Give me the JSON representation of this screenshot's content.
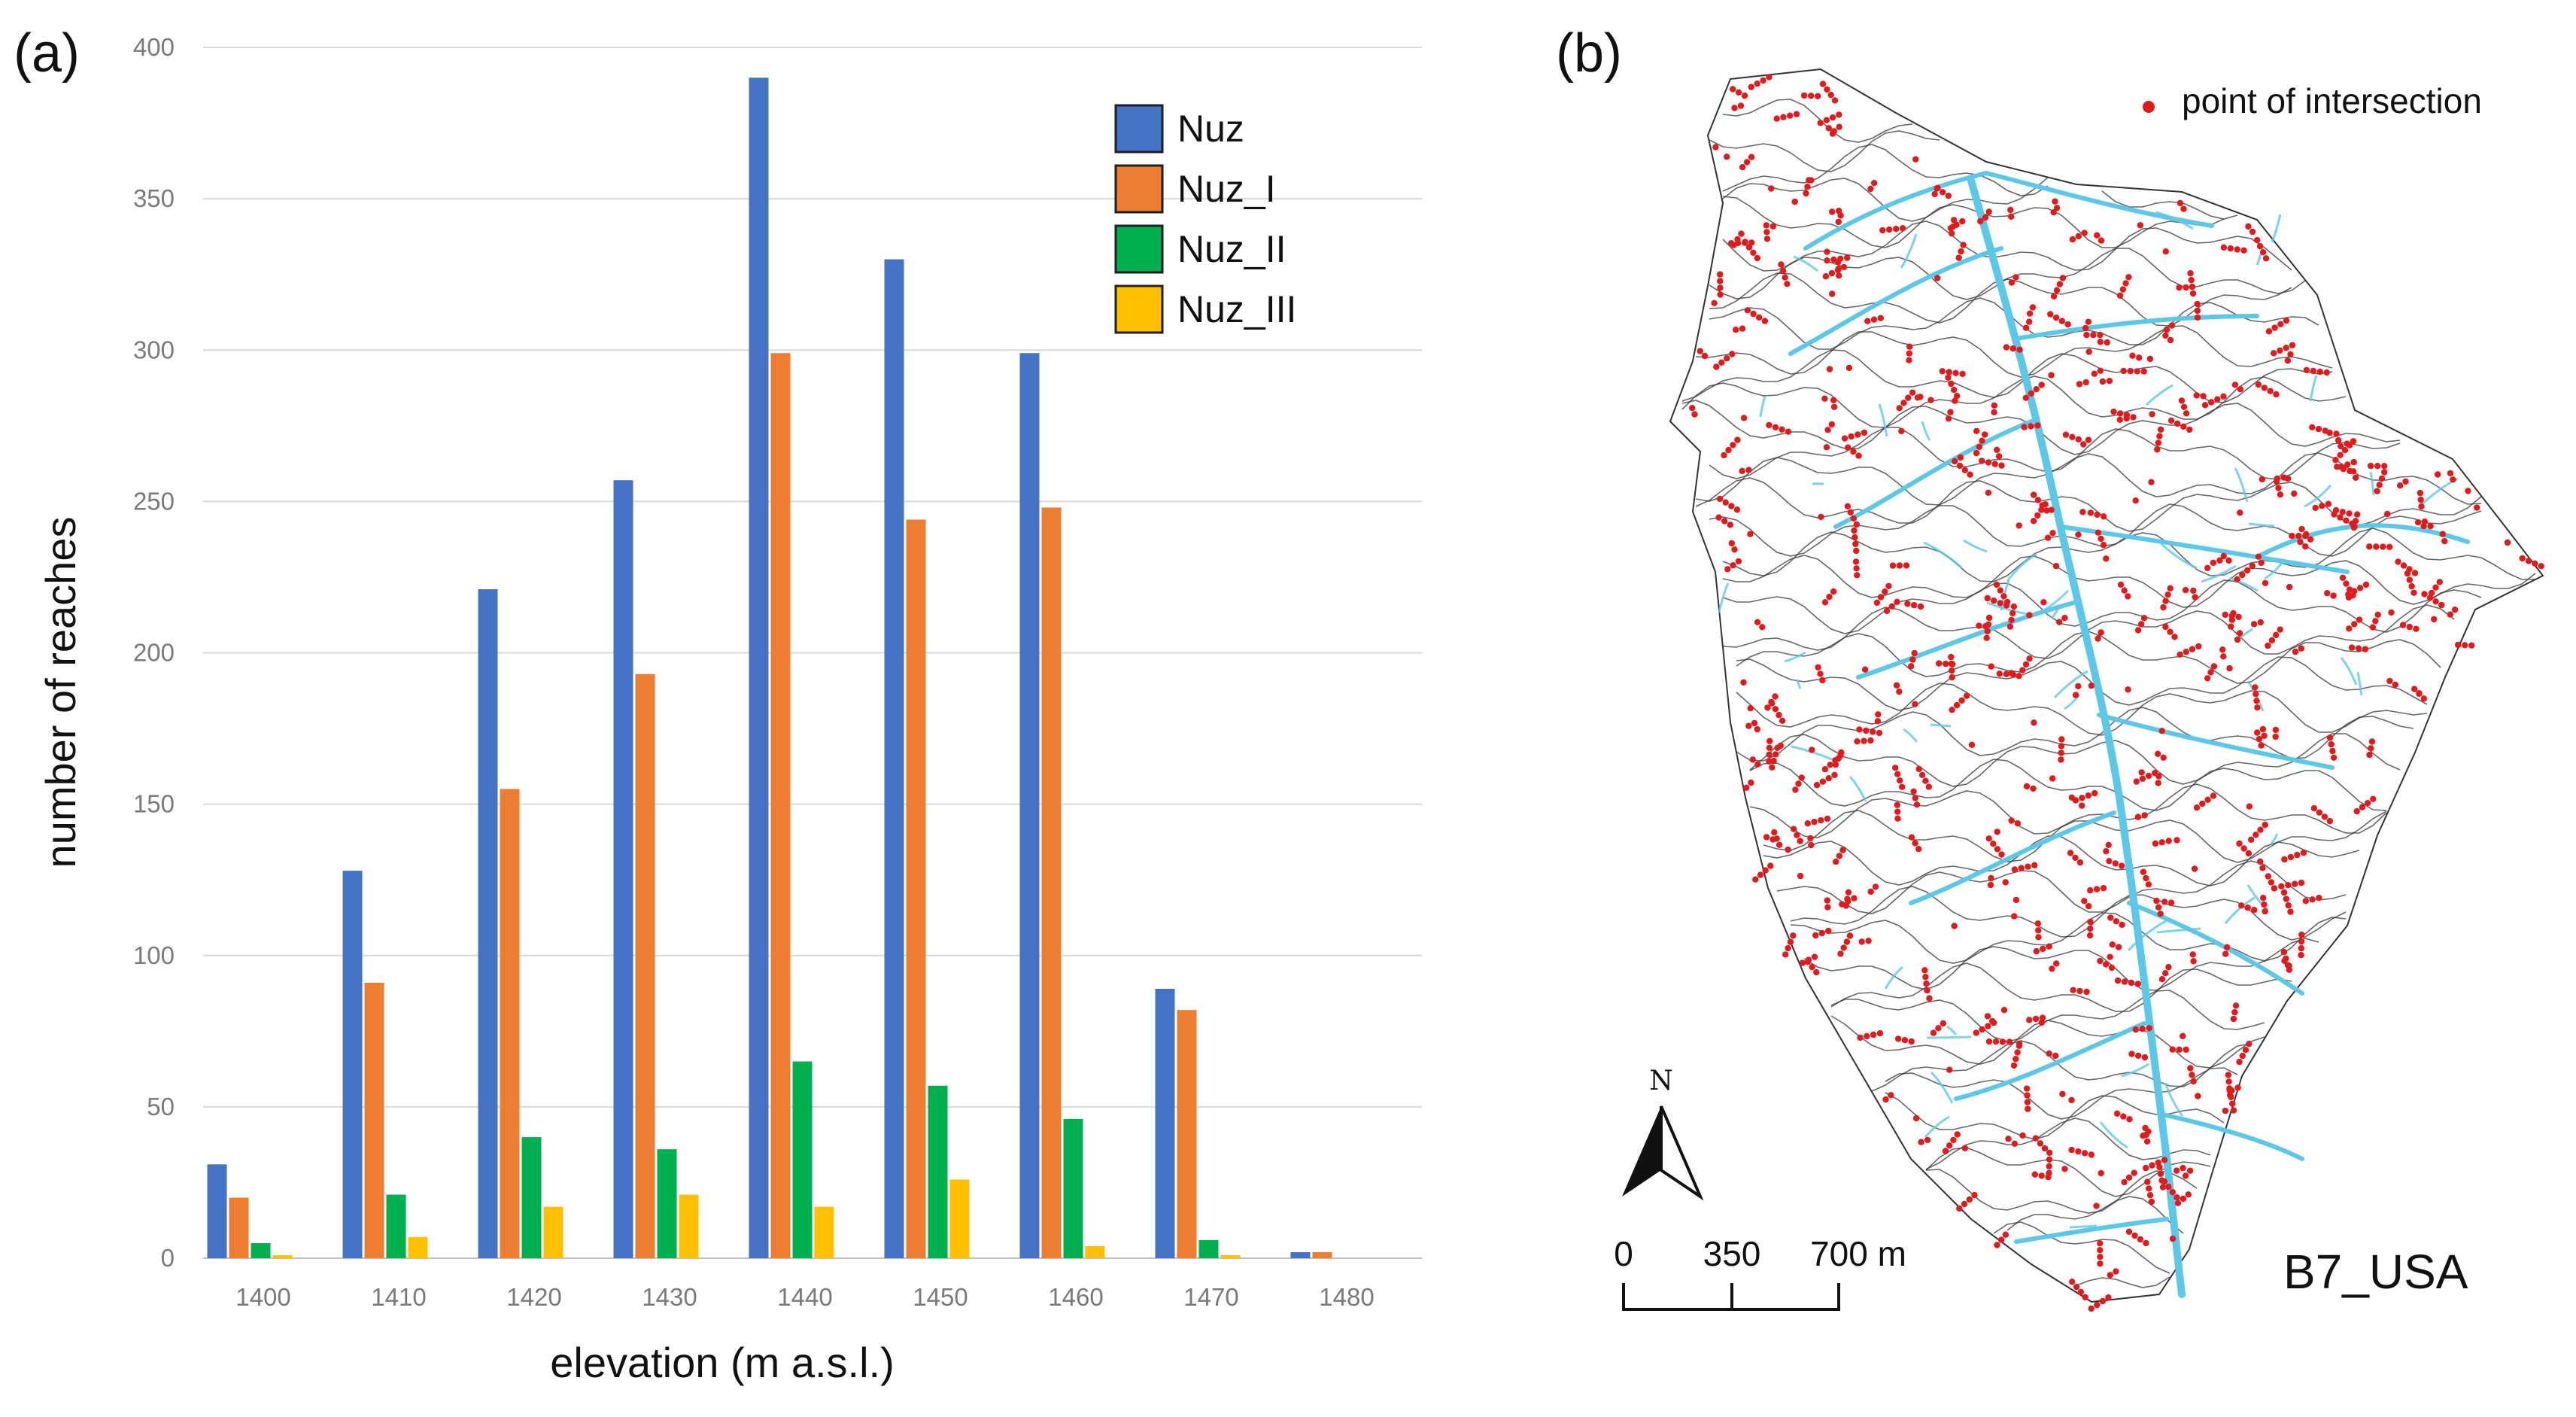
{
  "panel_a": {
    "label": "(a)"
  },
  "panel_b": {
    "label": "(b)"
  },
  "chart_data": {
    "type": "bar",
    "title": "",
    "xlabel": "elevation (m a.s.l.)",
    "ylabel": "number of reaches",
    "ylim": [
      0,
      400
    ],
    "yticks": [
      0,
      50,
      100,
      150,
      200,
      250,
      300,
      350,
      400
    ],
    "categories": [
      "1400",
      "1410",
      "1420",
      "1430",
      "1440",
      "1450",
      "1460",
      "1470",
      "1480"
    ],
    "legend_position": "top-right",
    "grid": true,
    "series": [
      {
        "name": "Nuz",
        "color": "#4472C4",
        "values": [
          31,
          128,
          221,
          257,
          390,
          330,
          299,
          89,
          2
        ]
      },
      {
        "name": "Nuz_I",
        "color": "#ED7D31",
        "values": [
          20,
          91,
          155,
          193,
          299,
          244,
          248,
          82,
          2
        ]
      },
      {
        "name": "Nuz_II",
        "color": "#00B050",
        "values": [
          5,
          21,
          40,
          36,
          65,
          57,
          46,
          6,
          0
        ]
      },
      {
        "name": "Nuz_III",
        "color": "#FFC000",
        "values": [
          1,
          7,
          17,
          21,
          17,
          26,
          4,
          1,
          0
        ]
      }
    ]
  },
  "map": {
    "legend_label": "point of intersection",
    "point_color": "#E31A1C",
    "stream_color": "#5BC8E8",
    "contour_color": "#333333",
    "north_label": "N",
    "scale_labels": [
      "0",
      "350",
      "700 m"
    ],
    "site_label": "B7_USA"
  }
}
